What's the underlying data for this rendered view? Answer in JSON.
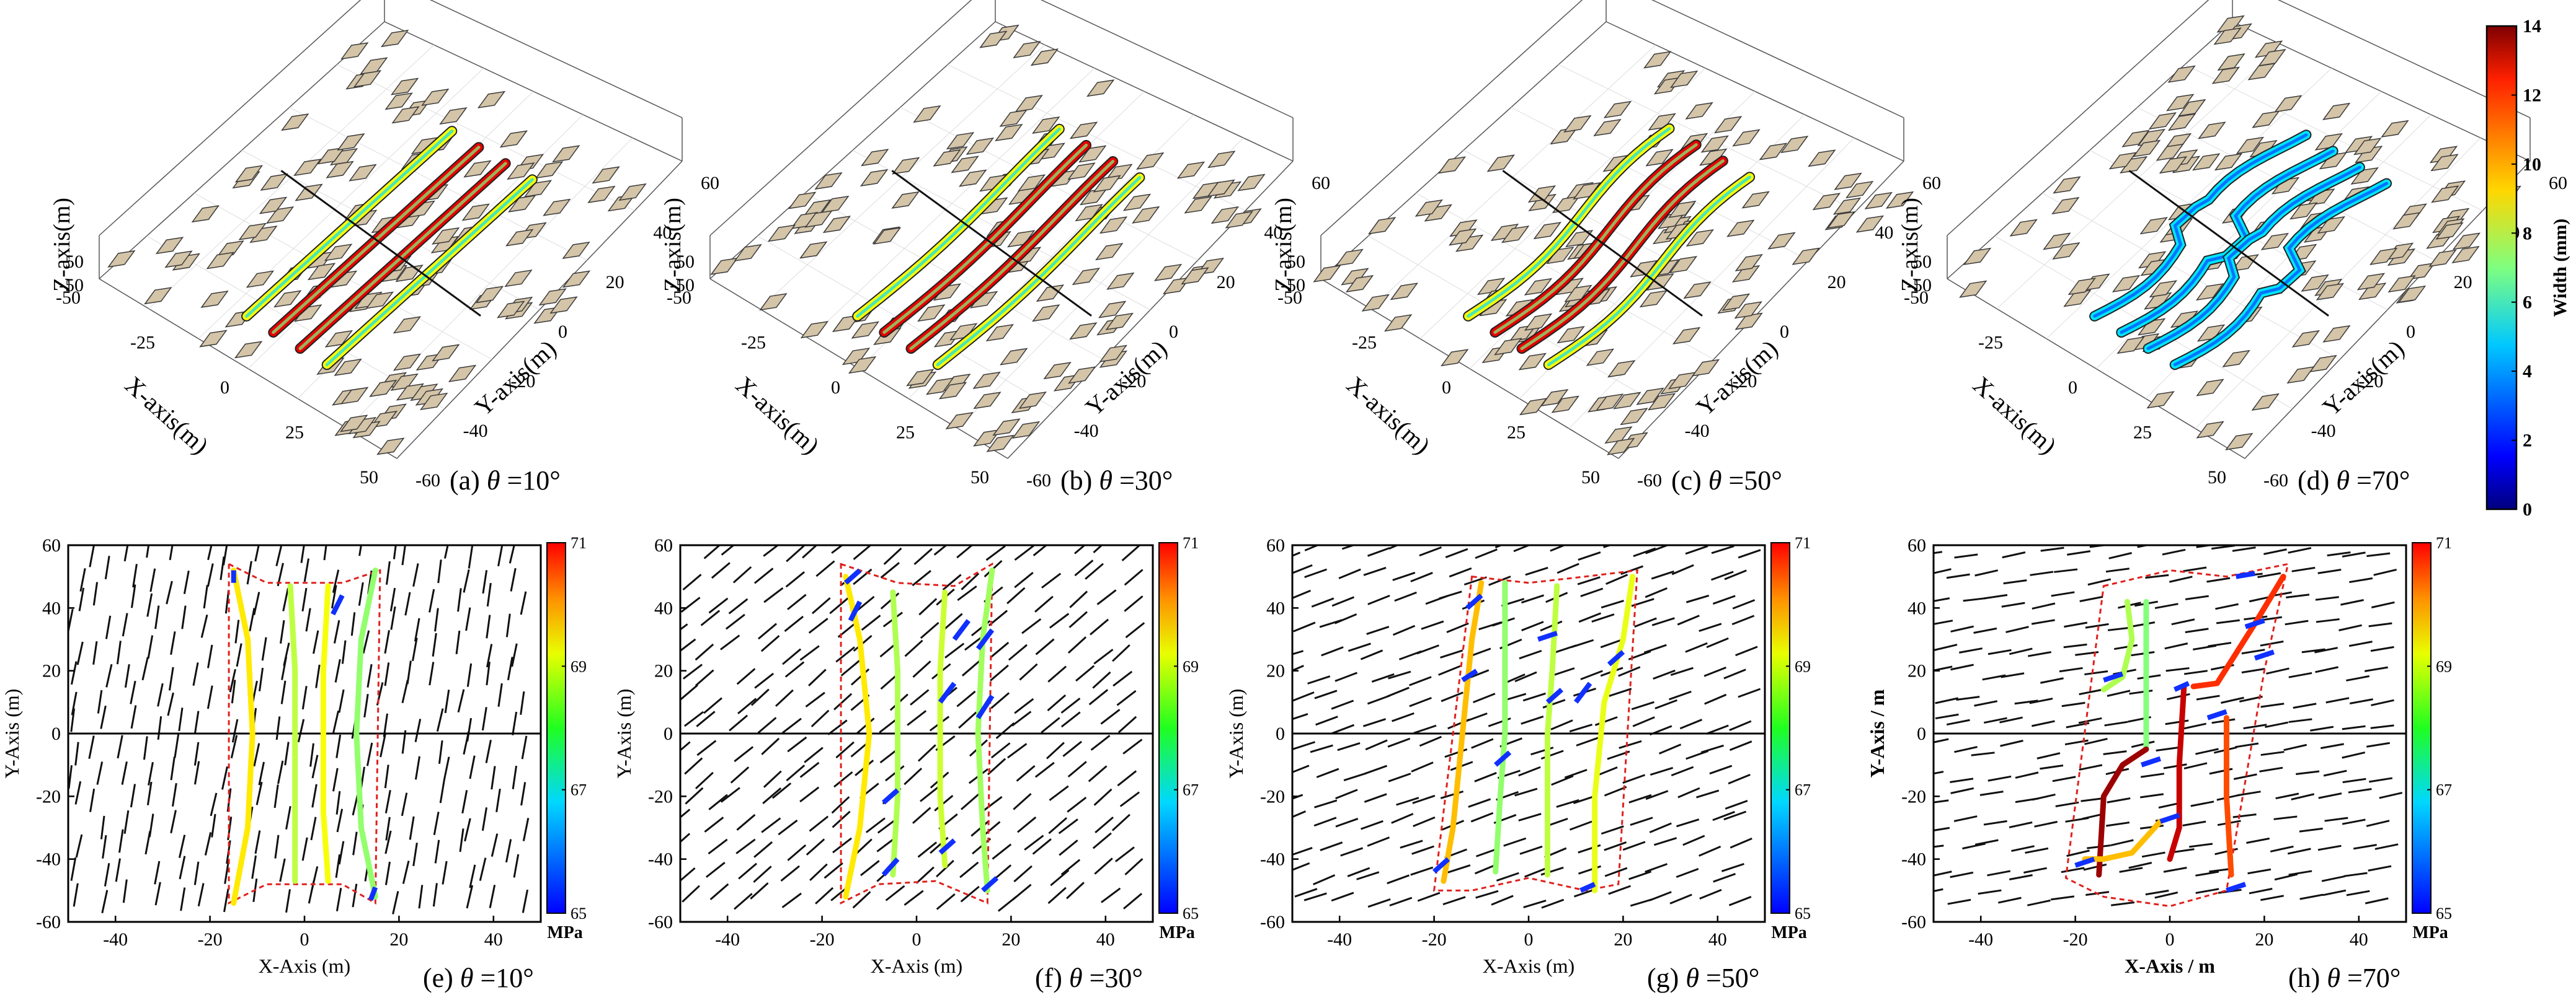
{
  "colors": {
    "fracture_3d_fill": "#d4c4a8",
    "fracture_3d_stroke": "#3a3a3a",
    "border_dashed": "#e0201c",
    "natural_fracture": "#111111",
    "axis": "#000000"
  },
  "panels_3d": [
    {
      "caption_prefix": "(a) ",
      "theta_symbol": "θ",
      "caption_suffix": " =10°",
      "angle": 10
    },
    {
      "caption_prefix": "(b) ",
      "theta_symbol": "θ",
      "caption_suffix": " =30°",
      "angle": 30
    },
    {
      "caption_prefix": "(c) ",
      "theta_symbol": "θ",
      "caption_suffix": " =50°",
      "angle": 50
    },
    {
      "caption_prefix": "(d) ",
      "theta_symbol": "θ",
      "caption_suffix": " =70°",
      "angle": 70
    }
  ],
  "axes_3d": {
    "z_label": "Z-axis(m)",
    "x_label": "X-axis(m)",
    "y_label": "Y-axis(m)",
    "z_ticks": [
      "50",
      "-50"
    ],
    "x_ticks": [
      "-50",
      "-25",
      "0",
      "25",
      "50"
    ],
    "y_ticks": [
      "-60",
      "-40",
      "-20",
      "0",
      "20",
      "40",
      "60"
    ]
  },
  "width_colorbar": {
    "label": "Width (mm)",
    "ticks": [
      "14",
      "12",
      "10",
      "8",
      "6",
      "4",
      "2",
      "0"
    ],
    "range": [
      0,
      14
    ]
  },
  "stress_colorbar": {
    "unit": "MPa",
    "ticks": [
      "71",
      "69",
      "67",
      "65"
    ],
    "range": [
      65,
      71
    ]
  },
  "chart_data": [
    {
      "type": "line",
      "panel": "(e)",
      "angle": 10,
      "caption_prefix": "(e) ",
      "caption_suffix": " =10°",
      "xlabel": "X-Axis (m)",
      "ylabel": "Y-Axis (m)",
      "xlim": [
        -50,
        50
      ],
      "ylim": [
        -60,
        60
      ],
      "xticks": [
        "-40",
        "-20",
        "0",
        "20",
        "40"
      ],
      "yticks": [
        "60",
        "40",
        "20",
        "0",
        "-20",
        "-40",
        "-60"
      ],
      "border": [
        [
          -16,
          54
        ],
        [
          -8,
          48
        ],
        [
          8,
          48
        ],
        [
          16,
          52
        ],
        [
          15,
          -54
        ],
        [
          8,
          -48
        ],
        [
          -8,
          -48
        ],
        [
          -16,
          -54
        ]
      ],
      "fractures": [
        {
          "points": [
            [
              -15,
              52
            ],
            [
              -12,
              30
            ],
            [
              -11,
              0
            ],
            [
              -12,
              -30
            ],
            [
              -15,
              -54
            ]
          ],
          "stress": 68.5
        },
        {
          "points": [
            [
              -3,
              47
            ],
            [
              -2,
              20
            ],
            [
              -2,
              0
            ],
            [
              -2,
              -25
            ],
            [
              -2,
              -47
            ]
          ],
          "stress": 67.9
        },
        {
          "points": [
            [
              5,
              47
            ],
            [
              4,
              20
            ],
            [
              4,
              0
            ],
            [
              4,
              -25
            ],
            [
              5,
              -47
            ]
          ],
          "stress": 68.3
        },
        {
          "points": [
            [
              15,
              52
            ],
            [
              12,
              30
            ],
            [
              11,
              0
            ],
            [
              12,
              -30
            ],
            [
              15,
              -52
            ]
          ],
          "stress": 67.6
        }
      ],
      "tips": [
        [
          -15,
          48,
          -15,
          52
        ],
        [
          6,
          38,
          8,
          44
        ],
        [
          15,
          -49,
          14,
          -53
        ]
      ],
      "nf_angle": 80
    },
    {
      "type": "line",
      "panel": "(f)",
      "angle": 30,
      "caption_prefix": "(f) ",
      "caption_suffix": " =30°",
      "xlabel": "X-Axis (m)",
      "ylabel": "Y-Axis (m)",
      "xlim": [
        -50,
        50
      ],
      "ylim": [
        -60,
        60
      ],
      "xticks": [
        "-40",
        "-20",
        "0",
        "20",
        "40"
      ],
      "yticks": [
        "60",
        "40",
        "20",
        "0",
        "-20",
        "-40",
        "-60"
      ],
      "border": [
        [
          -16,
          54
        ],
        [
          -4,
          48
        ],
        [
          8,
          47
        ],
        [
          16,
          54
        ],
        [
          15,
          -54
        ],
        [
          4,
          -47
        ],
        [
          -8,
          -48
        ],
        [
          -16,
          -54
        ]
      ],
      "fractures": [
        {
          "points": [
            [
              -15,
              50
            ],
            [
              -12,
              30
            ],
            [
              -10,
              0
            ],
            [
              -12,
              -30
            ],
            [
              -15,
              -52
            ]
          ],
          "stress": 68.5
        },
        {
          "points": [
            [
              -5,
              45
            ],
            [
              -4,
              20
            ],
            [
              -4,
              0
            ],
            [
              -4,
              -20
            ],
            [
              -5,
              -45
            ]
          ],
          "stress": 67.8
        },
        {
          "points": [
            [
              6,
              45
            ],
            [
              5,
              20
            ],
            [
              5,
              0
            ],
            [
              5,
              -20
            ],
            [
              6,
              -42
            ]
          ],
          "stress": 68.0
        },
        {
          "points": [
            [
              16,
              52
            ],
            [
              14,
              30
            ],
            [
              13,
              0
            ],
            [
              14,
              -30
            ],
            [
              15,
              -50
            ]
          ],
          "stress": 67.7
        }
      ],
      "tips": [
        [
          -15,
          48,
          -12,
          52
        ],
        [
          -14,
          36,
          -12,
          42
        ],
        [
          -7,
          -22,
          -4,
          -18
        ],
        [
          -7,
          -45,
          -4,
          -40
        ],
        [
          5,
          10,
          8,
          16
        ],
        [
          5,
          -38,
          8,
          -34
        ],
        [
          8,
          30,
          11,
          36
        ],
        [
          13,
          5,
          16,
          12
        ],
        [
          13,
          27,
          16,
          33
        ],
        [
          14,
          -50,
          17,
          -46
        ]
      ],
      "nf_angle": 40
    },
    {
      "type": "line",
      "panel": "(g)",
      "angle": 50,
      "caption_prefix": "(g) ",
      "caption_suffix": " =50°",
      "xlabel": "X-Axis (m)",
      "ylabel": "Y-Axis (m)",
      "xlim": [
        -50,
        50
      ],
      "ylim": [
        -60,
        60
      ],
      "xticks": [
        "-40",
        "-20",
        "0",
        "20",
        "40"
      ],
      "yticks": [
        "60",
        "40",
        "20",
        "0",
        "-20",
        "-40",
        "-60"
      ],
      "border": [
        [
          -12,
          50
        ],
        [
          0,
          48
        ],
        [
          12,
          50
        ],
        [
          23,
          52
        ],
        [
          19,
          -48
        ],
        [
          12,
          -50
        ],
        [
          0,
          -46
        ],
        [
          -12,
          -50
        ],
        [
          -20,
          -50
        ]
      ],
      "fractures": [
        {
          "points": [
            [
              -10,
              48
            ],
            [
              -12,
              30
            ],
            [
              -14,
              0
            ],
            [
              -16,
              -30
            ],
            [
              -18,
              -47
            ]
          ],
          "stress": 68.8
        },
        {
          "points": [
            [
              -5,
              48
            ],
            [
              -5,
              20
            ],
            [
              -5,
              0
            ],
            [
              -6,
              -20
            ],
            [
              -7,
              -44
            ]
          ],
          "stress": 67.6
        },
        {
          "points": [
            [
              6,
              47
            ],
            [
              5,
              20
            ],
            [
              4,
              0
            ],
            [
              4,
              -20
            ],
            [
              4,
              -45
            ]
          ],
          "stress": 67.9
        },
        {
          "points": [
            [
              22,
              50
            ],
            [
              20,
              30
            ],
            [
              16,
              10
            ],
            [
              14,
              -20
            ],
            [
              14,
              -50
            ]
          ],
          "stress": 68.2
        }
      ],
      "tips": [
        [
          -13,
          40,
          -10,
          44
        ],
        [
          -14,
          17,
          -11,
          20
        ],
        [
          -7,
          -10,
          -4,
          -6
        ],
        [
          -20,
          -44,
          -17,
          -40
        ],
        [
          2,
          30,
          6,
          32
        ],
        [
          4,
          10,
          7,
          14
        ],
        [
          10,
          10,
          13,
          16
        ],
        [
          17,
          22,
          20,
          26
        ],
        [
          11,
          -50,
          14,
          -48
        ]
      ],
      "nf_angle": 20
    },
    {
      "type": "line",
      "panel": "(h)",
      "angle": 70,
      "caption_prefix": "(h) ",
      "caption_suffix": " =70°",
      "xlabel": "X-Axis / m",
      "ylabel": "Y-Axis / m",
      "xlim": [
        -50,
        50
      ],
      "ylim": [
        -60,
        60
      ],
      "xticks": [
        "-40",
        "-20",
        "0",
        "20",
        "40"
      ],
      "yticks": [
        "60",
        "40",
        "20",
        "0",
        "-20",
        "-40",
        "-60"
      ],
      "border": [
        [
          -14,
          47
        ],
        [
          0,
          52
        ],
        [
          12,
          50
        ],
        [
          25,
          54
        ],
        [
          20,
          20
        ],
        [
          12,
          -50
        ],
        [
          0,
          -55
        ],
        [
          -14,
          -52
        ],
        [
          -22,
          -46
        ]
      ],
      "fractures": [
        {
          "points": [
            [
              -9,
              42
            ],
            [
              -8,
              30
            ],
            [
              -10,
              18
            ],
            [
              -14,
              14
            ]
          ],
          "stress": 67.8
        },
        {
          "points": [
            [
              -5,
              42
            ],
            [
              -5,
              20
            ],
            [
              -5,
              10
            ],
            [
              -5,
              -5
            ]
          ],
          "stress": 67.5
        },
        {
          "points": [
            [
              -5,
              -5
            ],
            [
              -10,
              -10
            ],
            [
              -14,
              -20
            ],
            [
              -15,
              -45
            ]
          ],
          "stress": 70.8
        },
        {
          "points": [
            [
              3,
              15
            ],
            [
              2,
              -10
            ],
            [
              2,
              -30
            ],
            [
              0,
              -40
            ]
          ],
          "stress": 70.5
        },
        {
          "points": [
            [
              5,
              15
            ],
            [
              10,
              16
            ],
            [
              18,
              35
            ],
            [
              24,
              50
            ]
          ],
          "stress": 69.8
        },
        {
          "points": [
            [
              12,
              5
            ],
            [
              12,
              -20
            ],
            [
              13,
              -45
            ]
          ],
          "stress": 69.6
        },
        {
          "points": [
            [
              -18,
              -40
            ],
            [
              -14,
              -40
            ],
            [
              -8,
              -38
            ],
            [
              -2,
              -28
            ]
          ],
          "stress": 68.8
        }
      ],
      "tips": [
        [
          -14,
          17,
          -10,
          19
        ],
        [
          -6,
          -10,
          -2,
          -8
        ],
        [
          -20,
          -42,
          -16,
          -40
        ],
        [
          1,
          14,
          4,
          16
        ],
        [
          8,
          5,
          12,
          7
        ],
        [
          16,
          34,
          20,
          36
        ],
        [
          14,
          50,
          18,
          51
        ],
        [
          18,
          24,
          22,
          26
        ],
        [
          -2,
          -28,
          2,
          -26
        ],
        [
          12,
          -50,
          16,
          -48
        ]
      ],
      "nf_angle": 10
    }
  ]
}
